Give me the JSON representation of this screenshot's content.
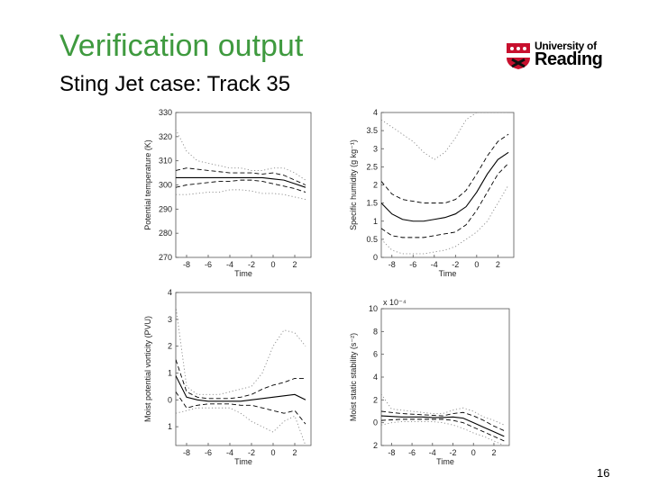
{
  "slide": {
    "title": "Verification output",
    "subtitle": "Sting Jet case: Track 35",
    "page_number": "16",
    "logo_line1": "University of",
    "logo_line2": "Reading"
  },
  "chart_data": [
    {
      "type": "line",
      "ylabel": "Potential temperature (K)",
      "xlabel": "Time",
      "x": [
        -9,
        -8,
        -7,
        -6,
        -5,
        -4,
        -3,
        -2,
        -1,
        0,
        1,
        2,
        3
      ],
      "xlim": [
        -9,
        3.5
      ],
      "xticks": [
        -8,
        -6,
        -4,
        -2,
        0,
        2
      ],
      "ylim": [
        270,
        330
      ],
      "yticks": [
        270,
        280,
        290,
        300,
        310,
        320,
        330
      ],
      "series": [
        {
          "color": "#000000",
          "dash": "solid",
          "values": [
            303,
            303,
            303,
            303,
            303,
            303,
            303,
            303,
            303,
            302.5,
            302,
            300.5,
            299
          ]
        },
        {
          "color": "#000000",
          "dash": "dashed",
          "values": [
            306,
            307,
            306.5,
            306,
            305.5,
            305,
            305,
            305,
            304.5,
            305,
            304,
            302,
            300
          ]
        },
        {
          "color": "#000000",
          "dash": "dashed",
          "values": [
            299,
            300,
            300.5,
            301,
            301.5,
            301.5,
            302,
            302,
            301.5,
            300.5,
            299.5,
            298.5,
            297
          ]
        },
        {
          "color": "#8a8a8a",
          "dash": "dotted",
          "values": [
            323,
            314,
            310,
            309,
            308,
            307,
            307,
            306,
            306,
            307,
            307,
            305,
            302
          ]
        },
        {
          "color": "#8a8a8a",
          "dash": "dotted",
          "values": [
            296,
            296,
            296.5,
            297,
            297,
            298,
            298,
            297.5,
            296.5,
            296.5,
            296,
            295,
            294
          ]
        }
      ]
    },
    {
      "type": "line",
      "ylabel": "Specific humidity (g kg⁻¹)",
      "xlabel": "Time",
      "x": [
        -9,
        -8,
        -7,
        -6,
        -5,
        -4,
        -3,
        -2,
        -1,
        0,
        1,
        2,
        3
      ],
      "xlim": [
        -9,
        3.5
      ],
      "xticks": [
        -8,
        -6,
        -4,
        -2,
        0,
        2
      ],
      "ylim": [
        0,
        4
      ],
      "yticks": [
        0,
        0.5,
        1,
        1.5,
        2,
        2.5,
        3,
        3.5,
        4
      ],
      "series": [
        {
          "color": "#000000",
          "dash": "solid",
          "values": [
            1.5,
            1.2,
            1.05,
            1,
            1,
            1.05,
            1.1,
            1.2,
            1.4,
            1.8,
            2.3,
            2.7,
            2.9
          ]
        },
        {
          "color": "#000000",
          "dash": "dashed",
          "values": [
            2.1,
            1.75,
            1.6,
            1.55,
            1.5,
            1.5,
            1.5,
            1.6,
            1.85,
            2.3,
            2.8,
            3.2,
            3.4
          ]
        },
        {
          "color": "#000000",
          "dash": "dashed",
          "values": [
            0.8,
            0.6,
            0.55,
            0.55,
            0.55,
            0.6,
            0.65,
            0.7,
            0.9,
            1.3,
            1.8,
            2.3,
            2.6
          ]
        },
        {
          "color": "#8a8a8a",
          "dash": "dotted",
          "values": [
            3.8,
            3.6,
            3.4,
            3.2,
            2.9,
            2.7,
            2.9,
            3.3,
            3.8,
            4,
            4,
            4,
            4
          ]
        },
        {
          "color": "#8a8a8a",
          "dash": "dotted",
          "values": [
            0.5,
            0.2,
            0.1,
            0.1,
            0.1,
            0.15,
            0.2,
            0.3,
            0.5,
            0.7,
            1,
            1.5,
            2
          ]
        }
      ]
    },
    {
      "type": "line",
      "ylabel": "Moist potential vorticity (PVU)",
      "xlabel": "Time",
      "x": [
        -9,
        -8,
        -7,
        -6,
        -5,
        -4,
        -3,
        -2,
        -1,
        0,
        1,
        2,
        3
      ],
      "xlim": [
        -9,
        3.5
      ],
      "xticks": [
        -8,
        -6,
        -4,
        -2,
        0,
        2
      ],
      "ylim": [
        -1.7,
        4
      ],
      "yticks": [
        {
          "value": -1,
          "label": "1"
        },
        0,
        1,
        2,
        3,
        4
      ],
      "series": [
        {
          "color": "#000000",
          "dash": "solid",
          "values": [
            0.9,
            0.1,
            0,
            -0.05,
            -0.05,
            -0.05,
            -0.05,
            0,
            0.05,
            0.1,
            0.15,
            0.2,
            0
          ]
        },
        {
          "color": "#000000",
          "dash": "dashed",
          "values": [
            1.5,
            0.3,
            0.1,
            0.05,
            0.05,
            0.05,
            0.1,
            0.2,
            0.4,
            0.55,
            0.65,
            0.8,
            0.8
          ]
        },
        {
          "color": "#000000",
          "dash": "dashed",
          "values": [
            0.3,
            -0.3,
            -0.2,
            -0.15,
            -0.15,
            -0.15,
            -0.2,
            -0.2,
            -0.3,
            -0.4,
            -0.5,
            -0.4,
            -0.9
          ]
        },
        {
          "color": "#8a8a8a",
          "dash": "dotted",
          "values": [
            3.5,
            0.5,
            0.2,
            0.2,
            0.2,
            0.3,
            0.4,
            0.5,
            1,
            2,
            2.6,
            2.5,
            2
          ]
        },
        {
          "color": "#8a8a8a",
          "dash": "dotted",
          "values": [
            -0.5,
            -0.4,
            -0.3,
            -0.3,
            -0.3,
            -0.3,
            -0.5,
            -0.8,
            -1,
            -1.2,
            -0.8,
            -0.6,
            -1.7
          ]
        }
      ]
    },
    {
      "type": "line",
      "ylabel": "Moist static stability (s⁻²)",
      "xlabel": "Time",
      "annotation": "x 10⁻⁴",
      "x": [
        -9,
        -8,
        -7,
        -6,
        -5,
        -4,
        -3,
        -2,
        -1,
        0,
        1,
        2,
        3
      ],
      "xlim": [
        -9,
        3.5
      ],
      "xticks": [
        -8,
        -6,
        -4,
        -2,
        0,
        2
      ],
      "ylim": [
        -2,
        10
      ],
      "yticks": [
        {
          "value": -2,
          "label": "2"
        },
        0,
        2,
        4,
        6,
        8,
        10
      ],
      "series": [
        {
          "color": "#000000",
          "dash": "solid",
          "values": [
            0.6,
            0.55,
            0.5,
            0.5,
            0.5,
            0.45,
            0.45,
            0.5,
            0.4,
            0,
            -0.4,
            -0.8,
            -1.2
          ]
        },
        {
          "color": "#000000",
          "dash": "dashed",
          "values": [
            1,
            0.9,
            0.8,
            0.75,
            0.7,
            0.65,
            0.6,
            0.8,
            0.9,
            0.6,
            0.2,
            -0.3,
            -0.7
          ]
        },
        {
          "color": "#000000",
          "dash": "dashed",
          "values": [
            0.2,
            0.25,
            0.3,
            0.3,
            0.3,
            0.3,
            0.3,
            0.2,
            0,
            -0.4,
            -0.8,
            -1.2,
            -1.6
          ]
        },
        {
          "color": "#8a8a8a",
          "dash": "dotted",
          "values": [
            2.5,
            1.2,
            1.1,
            1,
            0.9,
            0.8,
            0.8,
            1.1,
            1.3,
            1,
            0.5,
            0.2,
            -0.2
          ]
        },
        {
          "color": "#8a8a8a",
          "dash": "dotted",
          "values": [
            -0.2,
            0,
            0.1,
            0.1,
            0.1,
            0.1,
            0,
            -0.2,
            -0.5,
            -0.9,
            -1.2,
            -1.6,
            -2
          ]
        }
      ]
    }
  ]
}
